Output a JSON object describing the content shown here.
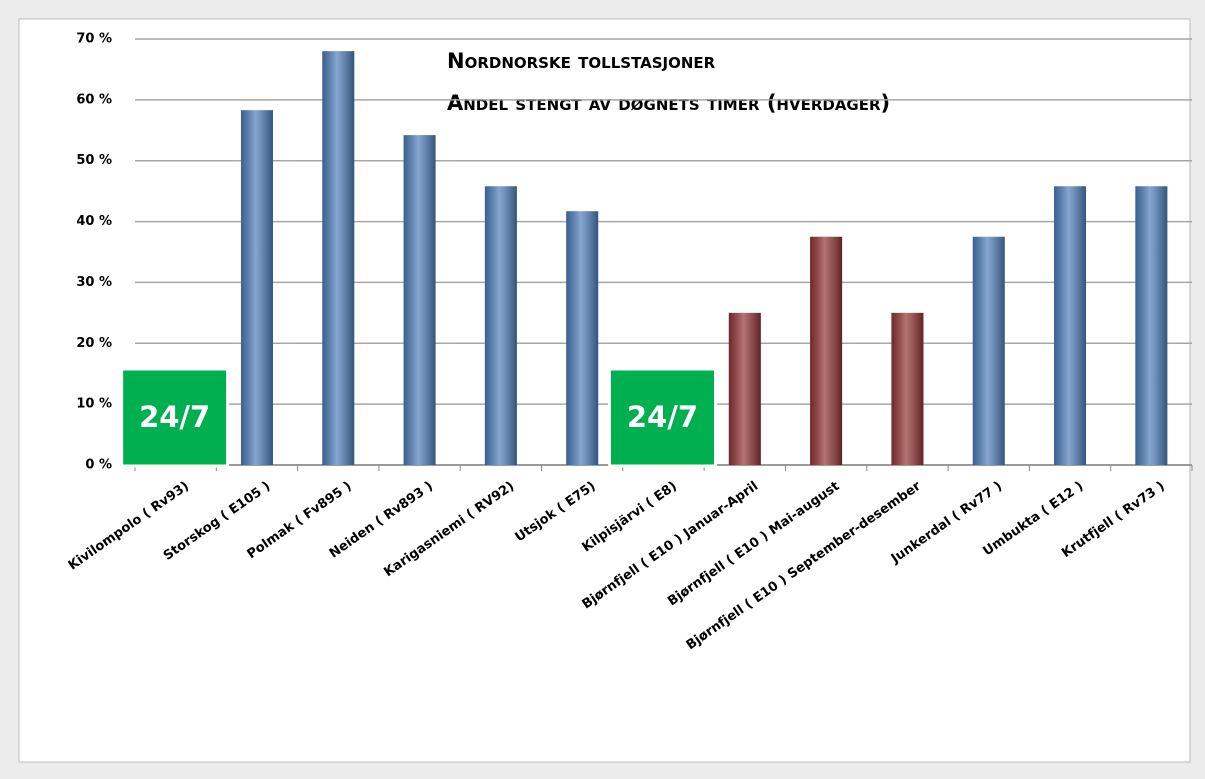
{
  "chart_data": {
    "type": "bar",
    "title": [
      "Nordnorske tollstasjoner",
      "Andel stengt av døgnets timer (hverdager)"
    ],
    "categories": [
      "Kivilompolo ( Rv93)",
      "Storskog ( E105 )",
      "Polmak ( Fv895 )",
      "Neiden ( Rv893 )",
      "Karigasniemi ( RV92)",
      "Utsjok ( E75)",
      "Kilpisjärvi ( E8)",
      "Bjørnfjell ( E10 ) Januar-April",
      "Bjørnfjell ( E10 ) Mai-august",
      "Bjørnfjell ( E10 ) September-desember",
      "Junkerdal ( Rv77 )",
      "Umbukta ( E12 )",
      "Krutfjell ( Rv73 )"
    ],
    "values": [
      0,
      58.3,
      68,
      54.2,
      45.8,
      41.7,
      0,
      25,
      37.5,
      25,
      37.5,
      45.8,
      45.8
    ],
    "colors": [
      "#4f81bd",
      "#4f81bd",
      "#4f81bd",
      "#4f81bd",
      "#4f81bd",
      "#4f81bd",
      "#4f81bd",
      "#943634",
      "#943634",
      "#943634",
      "#4f81bd",
      "#4f81bd",
      "#4f81bd"
    ],
    "ylim": [
      0,
      70
    ],
    "yticks": [
      {
        "value": 0,
        "label": "0 %"
      },
      {
        "value": 10,
        "label": "10 %"
      },
      {
        "value": 20,
        "label": "20 %"
      },
      {
        "value": 30,
        "label": "30 %"
      },
      {
        "value": 40,
        "label": "40 %"
      },
      {
        "value": 50,
        "label": "50 %"
      },
      {
        "value": 60,
        "label": "60 %"
      },
      {
        "value": 70,
        "label": "70 %"
      }
    ],
    "grid": true,
    "annotations": [
      {
        "text": "24/7",
        "at": "Kivilompolo ( Rv93)",
        "color": "#00b050"
      },
      {
        "text": "24/7",
        "at": "Kilpisjärvi ( E8)",
        "color": "#00b050"
      }
    ]
  }
}
